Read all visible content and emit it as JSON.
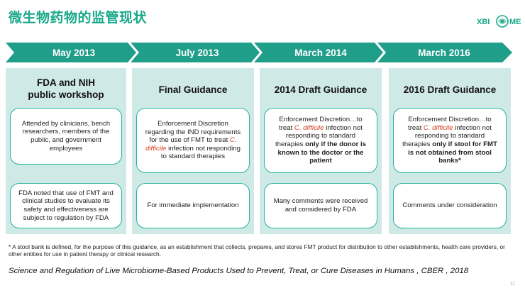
{
  "header": {
    "title": "微生物药物的监管现状",
    "logo": {
      "left": "XBI",
      "right": "ME"
    }
  },
  "timeline": [
    {
      "date": "May 2013"
    },
    {
      "date": "July 2013"
    },
    {
      "date": "March 2014"
    },
    {
      "date": "March 2016"
    }
  ],
  "columns": [
    {
      "heading_line1": "FDA and NIH",
      "heading_line2": "public workshop",
      "card1": "Attended by clinicians, bench researchers, members of the public, and government employees",
      "card2": "FDA noted that use of FMT and clinical studies to evaluate its safety and effectiveness are subject to regulation by FDA"
    },
    {
      "heading_line1": "Final Guidance",
      "card1_pre": "Enforcement Discretion regarding the IND requirements for the use of FMT to treat",
      "card1_italic": "C. difficile",
      "card1_post": "infection not responding to standard therapies",
      "card2": "For immediate implementation"
    },
    {
      "heading_line1": "2014 Draft Guidance",
      "card1_pre": "Enforcement Discretion…to treat",
      "card1_italic": "C. difficile",
      "card1_mid": "infection not responding to standard therapies",
      "card1_bold": "only if the donor is known to the doctor or the patient",
      "card2": "Many comments were received and considered by FDA"
    },
    {
      "heading_line1": "2016 Draft Guidance",
      "card1_pre": "Enforcement Discretion…to treat",
      "card1_italic": "C. difficile",
      "card1_mid": "infection not responding to standard therapies",
      "card1_bold": "only if stool for FMT is not obtained from stool banks*",
      "card2": "Comments under consideration"
    }
  ],
  "footnote": "* A stool bank is defined, for the purpose of this guidance, as an establishment that collects, prepares, and stores FMT product for distribution to other establishments, health care providers, or other entities for use in patient therapy or clinical research.",
  "citation": "Science and Regulation of Live Microbiome-Based Products Used to Prevent, Treat, or Cure Diseases in Humans , CBER , 2018",
  "page_number": "11",
  "colors": {
    "accent": "#17a889",
    "arrow": "#1f9e8a",
    "panel": "#cfe9e7",
    "card_border": "#27b39a",
    "highlight": "#d7401f"
  }
}
